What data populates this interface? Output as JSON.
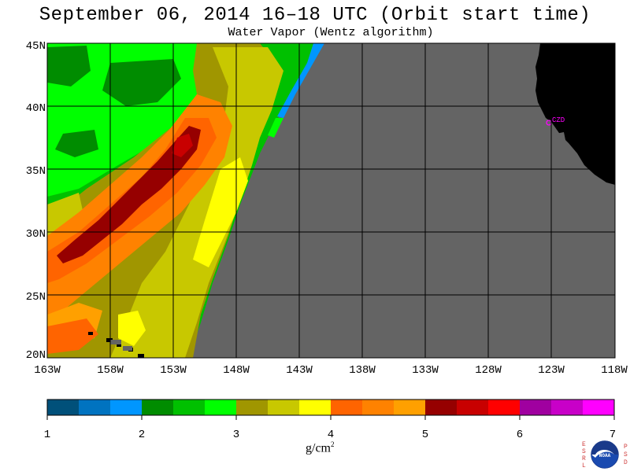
{
  "title": "September 06, 2014  16–18 UTC  (Orbit start time)",
  "subtitle": "Water Vapor (Wentz algorithm)",
  "map": {
    "lat_labels": [
      "45N",
      "40N",
      "35N",
      "30N",
      "25N",
      "20N"
    ],
    "lon_labels": [
      "163W",
      "158W",
      "153W",
      "148W",
      "143W",
      "138W",
      "133W",
      "128W",
      "123W",
      "118W"
    ],
    "station_label": "CZD",
    "colors": {
      "nodata": "#646464",
      "land": "#000000",
      "grid": "#000000",
      "station": "#ff00ff"
    }
  },
  "colorbar": {
    "tick_labels": [
      "1",
      "2",
      "3",
      "4",
      "5",
      "6",
      "7"
    ],
    "unit_label": "g/cm",
    "unit_exp": "2",
    "colors": [
      "#00507a",
      "#0073c0",
      "#0096ff",
      "#008c00",
      "#00c000",
      "#00ff00",
      "#a09600",
      "#c8c800",
      "#ffff00",
      "#ff6400",
      "#ff8200",
      "#ffa000",
      "#960000",
      "#c80000",
      "#ff0000",
      "#a000a0",
      "#c800c8",
      "#ff00ff"
    ]
  },
  "logos": {
    "left_letters": "ESRL",
    "right_letters": "PSD",
    "center_text": "NOAA"
  }
}
